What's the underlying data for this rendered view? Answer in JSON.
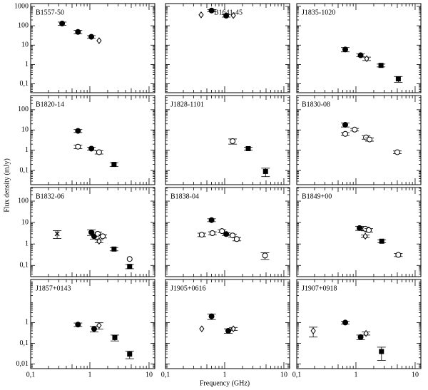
{
  "axes": {
    "xlabel": "Frequency (GHz)",
    "ylabel": "Flux density (mJy)",
    "log": true,
    "xlim": [
      0.1,
      12.5
    ],
    "xticks": [
      {
        "value": 0.1,
        "label": "0,1"
      },
      1,
      10
    ],
    "rows": [
      {
        "ylim": [
          0.035,
          1400
        ],
        "yticks": [
          {
            "value": 0.1,
            "label": "0,1"
          },
          1,
          10,
          100,
          1000
        ]
      },
      {
        "ylim": [
          0.02,
          500
        ],
        "yticks": [
          {
            "value": 0.1,
            "label": "0,1"
          },
          1,
          10,
          100
        ]
      },
      {
        "ylim": [
          0.03,
          430
        ],
        "yticks": [
          {
            "value": 0.1,
            "label": "0,1"
          },
          1,
          10,
          100
        ]
      },
      {
        "ylim": [
          0.006,
          120
        ],
        "yticks": [
          {
            "value": 0.01,
            "label": "0,01"
          },
          {
            "value": 0.1,
            "label": "0,1"
          },
          1
        ]
      }
    ]
  },
  "chart_data": [
    {
      "type": "scatter",
      "title": "B1557-50",
      "series": [
        {
          "marker": "filled-circle",
          "x": [
            0.34,
            0.63,
            1.06
          ],
          "values": [
            130,
            48,
            27
          ],
          "errors": [
            25,
            10,
            4
          ]
        },
        {
          "marker": "open-diamond",
          "x": [
            1.43
          ],
          "values": [
            17
          ],
          "errors": [
            null
          ]
        }
      ]
    },
    {
      "type": "scatter",
      "title": "B1641-45",
      "series": [
        {
          "marker": "open-diamond",
          "x": [
            0.4,
            1.4
          ],
          "values": [
            365,
            340
          ],
          "errors": [
            null,
            null
          ]
        },
        {
          "marker": "filled-circle",
          "x": [
            0.6,
            1.06
          ],
          "values": [
            610,
            330
          ],
          "errors": [
            80,
            50
          ]
        }
      ]
    },
    {
      "type": "scatter",
      "title": "J1835-1020",
      "series": [
        {
          "marker": "filled-circle",
          "x": [
            0.66,
            1.2
          ],
          "values": [
            6,
            3
          ],
          "errors": [
            1.5,
            0.5
          ]
        },
        {
          "marker": "open-diamond",
          "x": [
            1.52
          ],
          "values": [
            2
          ],
          "errors": [
            0.4
          ]
        },
        {
          "marker": "filled-square",
          "x": [
            2.65,
            5.2
          ],
          "values": [
            0.9,
            0.18
          ],
          "errors": [
            0.15,
            0.06
          ]
        }
      ]
    },
    {
      "type": "scatter",
      "title": "B1820-14",
      "series": [
        {
          "marker": "filled-circle",
          "x": [
            0.63,
            1.06
          ],
          "values": [
            9,
            1.2
          ],
          "errors": [
            1.5,
            0.2
          ]
        },
        {
          "marker": "open-circle",
          "x": [
            0.63,
            1.43
          ],
          "values": [
            1.5,
            0.8
          ],
          "errors": [
            0.3,
            0.15
          ]
        },
        {
          "marker": "filled-square",
          "x": [
            2.56
          ],
          "values": [
            0.2
          ],
          "errors": [
            0.04
          ]
        }
      ]
    },
    {
      "type": "scatter",
      "title": "J1828-1101",
      "series": [
        {
          "marker": "open-circle",
          "x": [
            1.36
          ],
          "values": [
            2.8
          ],
          "errors": [
            0.8
          ]
        },
        {
          "marker": "filled-square",
          "x": [
            2.5,
            4.9
          ],
          "values": [
            1.2,
            0.09
          ],
          "errors": [
            0.2,
            0.04
          ]
        }
      ]
    },
    {
      "type": "scatter",
      "title": "B1830-08",
      "series": [
        {
          "marker": "filled-circle",
          "x": [
            0.66
          ],
          "values": [
            18
          ],
          "errors": [
            4
          ]
        },
        {
          "marker": "open-circle",
          "x": [
            0.66,
            0.95,
            1.48,
            1.7,
            5.0
          ],
          "values": [
            6.4,
            10.4,
            4.3,
            3.4,
            0.8
          ],
          "errors": [
            1,
            1.5,
            0.8,
            0.6,
            0.12
          ]
        }
      ]
    },
    {
      "type": "scatter",
      "title": "B1832-06",
      "series": [
        {
          "marker": "cross",
          "x": [
            0.28
          ],
          "values": [
            3
          ],
          "errors": [
            1.2
          ]
        },
        {
          "marker": "filled-circle",
          "x": [
            1.06,
            1.18
          ],
          "values": [
            3.5,
            2.3
          ],
          "errors": [
            1,
            0.6
          ]
        },
        {
          "marker": "open-circle",
          "x": [
            1.36,
            1.65,
            4.7
          ],
          "values": [
            3,
            2.3,
            0.2
          ],
          "errors": [
            0.6,
            0.4,
            null
          ]
        },
        {
          "marker": "open-diamond",
          "x": [
            1.43
          ],
          "values": [
            1.35
          ],
          "errors": [
            0.2
          ]
        },
        {
          "marker": "filled-square",
          "x": [
            2.56,
            4.7
          ],
          "values": [
            0.58,
            0.09
          ],
          "errors": [
            0.1,
            0.02
          ]
        }
      ]
    },
    {
      "type": "scatter",
      "title": "B1838-04",
      "series": [
        {
          "marker": "filled-circle",
          "x": [
            0.6,
            1.06
          ],
          "values": [
            13,
            2.9
          ],
          "errors": [
            2,
            0.4
          ]
        },
        {
          "marker": "open-circle",
          "x": [
            0.41,
            0.62,
            0.9,
            1.36,
            1.6,
            4.8
          ],
          "values": [
            2.7,
            3.2,
            4,
            2.5,
            1.7,
            0.29
          ],
          "errors": [
            0.5,
            0.5,
            0.6,
            0.4,
            0.3,
            0.1
          ]
        }
      ]
    },
    {
      "type": "scatter",
      "title": "B1849+00",
      "series": [
        {
          "marker": "filled-circle",
          "x": [
            1.15
          ],
          "values": [
            5.5
          ],
          "errors": [
            1.2
          ]
        },
        {
          "marker": "open-circle",
          "x": [
            1.44,
            1.65,
            5.2
          ],
          "values": [
            5.1,
            4.4,
            0.31
          ],
          "errors": [
            1,
            0.8,
            0.05
          ]
        },
        {
          "marker": "open-diamond",
          "x": [
            1.44
          ],
          "values": [
            2.3
          ],
          "errors": [
            0.3
          ]
        },
        {
          "marker": "filled-square",
          "x": [
            2.73
          ],
          "values": [
            1.35
          ],
          "errors": [
            0.2
          ]
        }
      ]
    },
    {
      "type": "scatter",
      "title": "J1857+0143",
      "series": [
        {
          "marker": "filled-circle",
          "x": [
            0.63,
            1.18
          ],
          "values": [
            0.8,
            0.5
          ],
          "errors": [
            0.15,
            0.15
          ]
        },
        {
          "marker": "open-diamond",
          "x": [
            1.43
          ],
          "values": [
            0.73
          ],
          "errors": [
            0.25
          ]
        },
        {
          "marker": "filled-square",
          "x": [
            2.64,
            4.7
          ],
          "values": [
            0.19,
            0.03
          ],
          "errors": [
            0.06,
            0.012
          ]
        }
      ]
    },
    {
      "type": "scatter",
      "title": "J1905+0616",
      "series": [
        {
          "marker": "open-diamond",
          "x": [
            0.41,
            1.4
          ],
          "values": [
            0.5,
            0.5
          ],
          "errors": [
            null,
            0.08
          ]
        },
        {
          "marker": "filled-circle",
          "x": [
            0.6,
            1.15
          ],
          "values": [
            2,
            0.4
          ],
          "errors": [
            0.6,
            0.1
          ]
        }
      ]
    },
    {
      "type": "scatter",
      "title": "J1907+0918",
      "series": [
        {
          "marker": "open-diamond",
          "x": [
            0.19,
            1.48
          ],
          "values": [
            0.4,
            0.3
          ],
          "errors": [
            0.2,
            0.05
          ]
        },
        {
          "marker": "filled-circle",
          "x": [
            0.66,
            1.2
          ],
          "values": [
            1,
            0.2
          ],
          "errors": [
            0.15,
            0.05
          ]
        },
        {
          "marker": "filled-square",
          "x": [
            2.7
          ],
          "values": [
            0.04
          ],
          "errors": [
            0.025
          ]
        }
      ]
    }
  ]
}
